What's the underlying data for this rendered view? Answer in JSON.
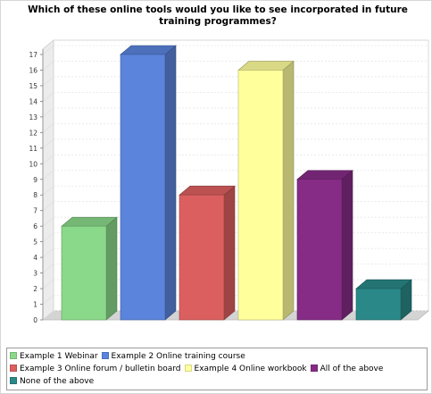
{
  "chart_data": {
    "type": "bar",
    "title": "Which of these online tools would you like to see incorporated in future training programmes?",
    "categories": [
      "Example 1 Webinar",
      "Example 2 Online training course",
      "Example 3 Online forum / bulletin board",
      "Example 4 Online workbook",
      "All of the above",
      "None of the above"
    ],
    "values": [
      6,
      17,
      8,
      16,
      9,
      2
    ],
    "colors": [
      "#8ad98a",
      "#5b84dc",
      "#dc5f5f",
      "#ffff9c",
      "#862c86",
      "#2a8888"
    ],
    "ylim": [
      0,
      17
    ],
    "yticks": [
      "0",
      "1",
      "2",
      "3",
      "4",
      "5",
      "6",
      "7",
      "8",
      "9",
      "10",
      "11",
      "12",
      "13",
      "14",
      "15",
      "16",
      "17"
    ],
    "grid": true,
    "legend_position": "bottom",
    "style": "3d"
  }
}
